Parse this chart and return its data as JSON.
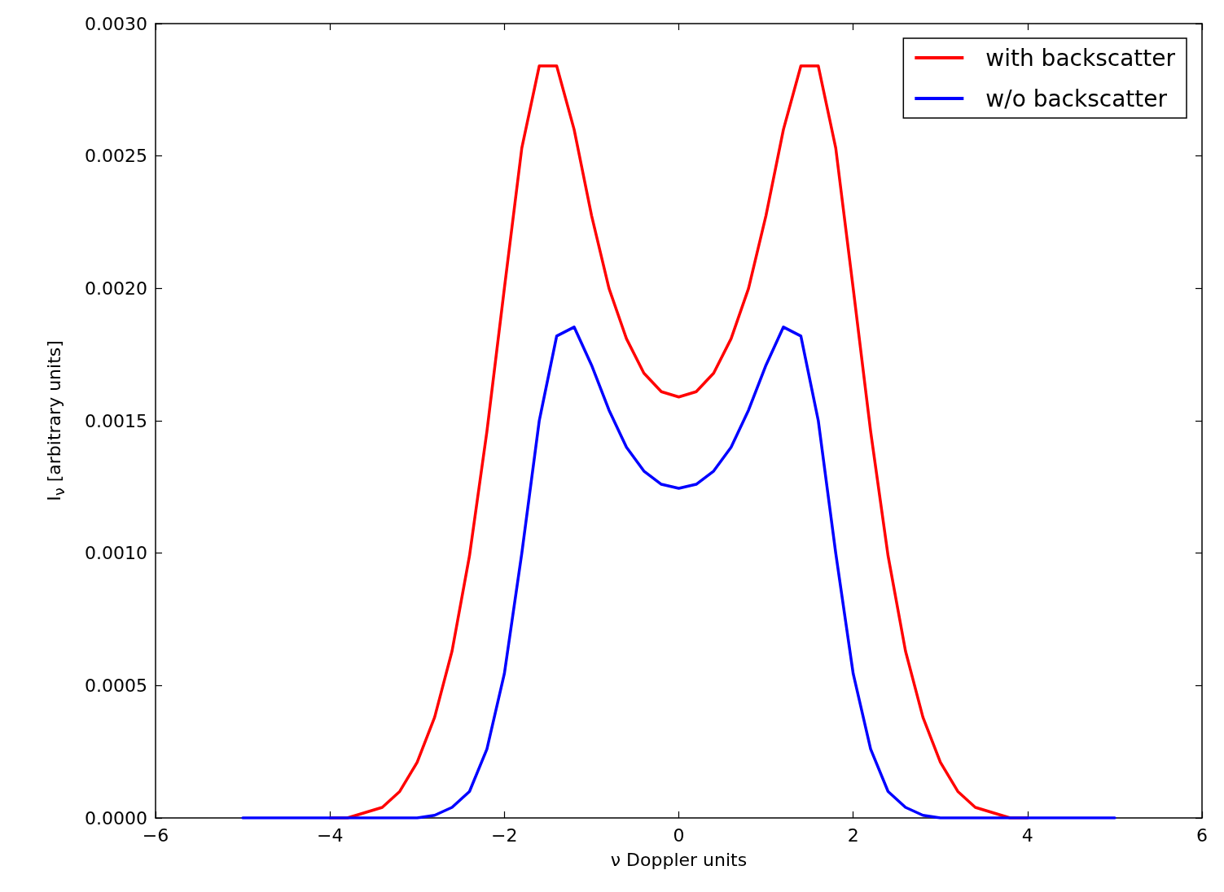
{
  "chart_data": {
    "type": "line",
    "xlabel": "ν Doppler units",
    "ylabel": "I$_{ν}$ [arbitrary units]",
    "x": [
      -5,
      -4.8,
      -4.6,
      -4.4,
      -4.2,
      -4,
      -3.8,
      -3.6,
      -3.4,
      -3.2,
      -3,
      -2.8,
      -2.6,
      -2.4,
      -2.2,
      -2,
      -1.8,
      -1.6,
      -1.4,
      -1.2,
      -1,
      -0.8,
      -0.6,
      -0.4,
      -0.2,
      0,
      0.2,
      0.4,
      0.6,
      0.8,
      1,
      1.2,
      1.4,
      1.6,
      1.8,
      2,
      2.2,
      2.4,
      2.6,
      2.8,
      3,
      3.2,
      3.4,
      3.6,
      3.8,
      4,
      4.2,
      4.4,
      4.6,
      4.8,
      5
    ],
    "series": [
      {
        "name": "with backscatter",
        "color": "#ff0000",
        "values": [
          null,
          null,
          null,
          null,
          null,
          0,
          0,
          2e-05,
          4e-05,
          0.0001,
          0.00021,
          0.00038,
          0.00063,
          0.00099,
          0.00146,
          0.002,
          0.00253,
          0.00284,
          0.00284,
          0.0026,
          0.002275,
          0.002,
          0.00181,
          0.00168,
          0.00161,
          0.00159,
          0.00161,
          0.00168,
          0.00181,
          0.002,
          0.002275,
          0.0026,
          0.00284,
          0.00284,
          0.00253,
          0.002,
          0.00146,
          0.00099,
          0.00063,
          0.00038,
          0.00021,
          0.0001,
          4e-05,
          2e-05,
          0,
          0,
          null,
          null,
          null,
          null,
          null
        ]
      },
      {
        "name": "w/o backscatter",
        "color": "#0000ff",
        "values": [
          0,
          0,
          0,
          0,
          0,
          0,
          0,
          0,
          0,
          0,
          0,
          1e-05,
          4e-05,
          0.0001,
          0.00026,
          0.000545,
          0.001,
          0.0015,
          0.00182,
          0.001854,
          0.00171,
          0.00154,
          0.0014,
          0.00131,
          0.00126,
          0.001245,
          0.00126,
          0.00131,
          0.0014,
          0.00154,
          0.00171,
          0.001854,
          0.00182,
          0.0015,
          0.001,
          0.000545,
          0.00026,
          0.0001,
          4e-05,
          1e-05,
          0,
          0,
          0,
          0,
          0,
          0,
          0,
          0,
          0,
          0,
          0
        ]
      }
    ],
    "xlim": [
      -6,
      6
    ],
    "xticks": [
      {
        "value": -6,
        "label": "−6"
      },
      {
        "value": -4,
        "label": "−4"
      },
      {
        "value": -2,
        "label": "−2"
      },
      0,
      2,
      4,
      6
    ],
    "ylim": [
      0,
      0.003
    ],
    "yticks": [
      {
        "value": 0,
        "label": "0.0000"
      },
      {
        "value": 0.0005,
        "label": "0.0005"
      },
      {
        "value": 0.001,
        "label": "0.0010"
      },
      {
        "value": 0.0015,
        "label": "0.0015"
      },
      {
        "value": 0.002,
        "label": "0.0020"
      },
      {
        "value": 0.0025,
        "label": "0.0025"
      },
      {
        "value": 0.003,
        "label": "0.0030"
      }
    ],
    "grid": false,
    "legend": "top right",
    "marker": "none",
    "line_style": "solid"
  }
}
